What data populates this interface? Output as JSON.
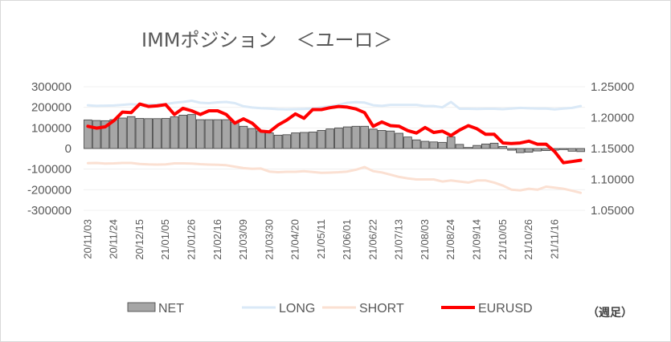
{
  "chart_data": {
    "type": "bar+line",
    "title": "IMMポジション　＜ユーロ＞",
    "unit_note": "（週足）",
    "colors": {
      "net": "#a6a6a6",
      "long": "#dae9f7",
      "short": "#fbe0d2",
      "eurusd": "#ff0000"
    },
    "y_left": {
      "min": -300000,
      "max": 300000,
      "step": 100000,
      "tick_labels": [
        "300000",
        "200000",
        "100000",
        "0",
        "-100000",
        "-200000",
        "-300000"
      ]
    },
    "y_right": {
      "min": 1.05,
      "max": 1.25,
      "step": 0.05,
      "tick_labels": [
        "1.25000",
        "1.20000",
        "1.15000",
        "1.10000",
        "1.05000"
      ]
    },
    "x_tick_labels": [
      "20/11/03",
      "20/11/24",
      "20/12/15",
      "21/01/05",
      "21/01/26",
      "21/02/16",
      "21/03/09",
      "21/03/30",
      "21/04/20",
      "21/05/11",
      "21/06/01",
      "21/06/22",
      "21/07/13",
      "21/08/03",
      "21/08/24",
      "21/09/14",
      "21/10/05",
      "21/10/26",
      "21/11/16"
    ],
    "legend": [
      "NET",
      "LONG",
      "SHORT",
      "EURUSD"
    ],
    "series": [
      {
        "name": "NET",
        "type": "bar",
        "values": [
          139000,
          136000,
          135000,
          140000,
          148000,
          155000,
          146000,
          145000,
          145000,
          146000,
          154000,
          162000,
          165000,
          140000,
          140000,
          140000,
          140000,
          128000,
          108000,
          97000,
          86000,
          76000,
          65000,
          67000,
          76000,
          78000,
          80000,
          88000,
          95000,
          100000,
          105000,
          108000,
          108000,
          94000,
          88000,
          85000,
          74000,
          56000,
          42000,
          35000,
          32000,
          30000,
          56000,
          20000,
          5000,
          15000,
          22000,
          26000,
          10000,
          -8000,
          -20000,
          -18000,
          -12000,
          -10000,
          -8000,
          -5000,
          -13000,
          -15000
        ]
      },
      {
        "name": "LONG",
        "type": "line",
        "values": [
          210000,
          207000,
          208000,
          209000,
          212000,
          215000,
          212000,
          213000,
          214000,
          216000,
          222000,
          226000,
          232000,
          222000,
          220000,
          224000,
          226000,
          220000,
          205000,
          199000,
          196000,
          194000,
          191000,
          190000,
          191000,
          192000,
          194000,
          200000,
          205000,
          212000,
          222000,
          225000,
          223000,
          210000,
          207000,
          212000,
          212000,
          212000,
          212000,
          206000,
          206000,
          200000,
          226000,
          193000,
          193000,
          192000,
          193000,
          193000,
          191000,
          194000,
          197000,
          195000,
          194000,
          194000,
          190000,
          194000,
          197000,
          206000
        ]
      },
      {
        "name": "SHORT",
        "type": "line",
        "values": [
          -71000,
          -70000,
          -73000,
          -72000,
          -70000,
          -70000,
          -75000,
          -77000,
          -78000,
          -77000,
          -72000,
          -72000,
          -73000,
          -76000,
          -78000,
          -79000,
          -81000,
          -88000,
          -95000,
          -98000,
          -97000,
          -112000,
          -115000,
          -113000,
          -113000,
          -110000,
          -114000,
          -118000,
          -117000,
          -115000,
          -112000,
          -103000,
          -90000,
          -110000,
          -116000,
          -127000,
          -138000,
          -145000,
          -150000,
          -150000,
          -150000,
          -160000,
          -155000,
          -160000,
          -165000,
          -155000,
          -155000,
          -165000,
          -180000,
          -200000,
          -203000,
          -195000,
          -200000,
          -185000,
          -190000,
          -195000,
          -205000,
          -215000
        ]
      },
      {
        "name": "EURUSD",
        "type": "line",
        "values": [
          1.186,
          1.183,
          1.185,
          1.195,
          1.209,
          1.208,
          1.222,
          1.218,
          1.219,
          1.221,
          1.205,
          1.215,
          1.211,
          1.205,
          1.211,
          1.211,
          1.205,
          1.191,
          1.198,
          1.191,
          1.178,
          1.177,
          1.188,
          1.196,
          1.206,
          1.199,
          1.213,
          1.213,
          1.216,
          1.218,
          1.217,
          1.214,
          1.208,
          1.186,
          1.193,
          1.187,
          1.186,
          1.179,
          1.175,
          1.184,
          1.176,
          1.178,
          1.171,
          1.18,
          1.187,
          1.182,
          1.173,
          1.173,
          1.159,
          1.158,
          1.159,
          1.162,
          1.157,
          1.157,
          1.145,
          1.127,
          1.129,
          1.131
        ]
      }
    ]
  }
}
